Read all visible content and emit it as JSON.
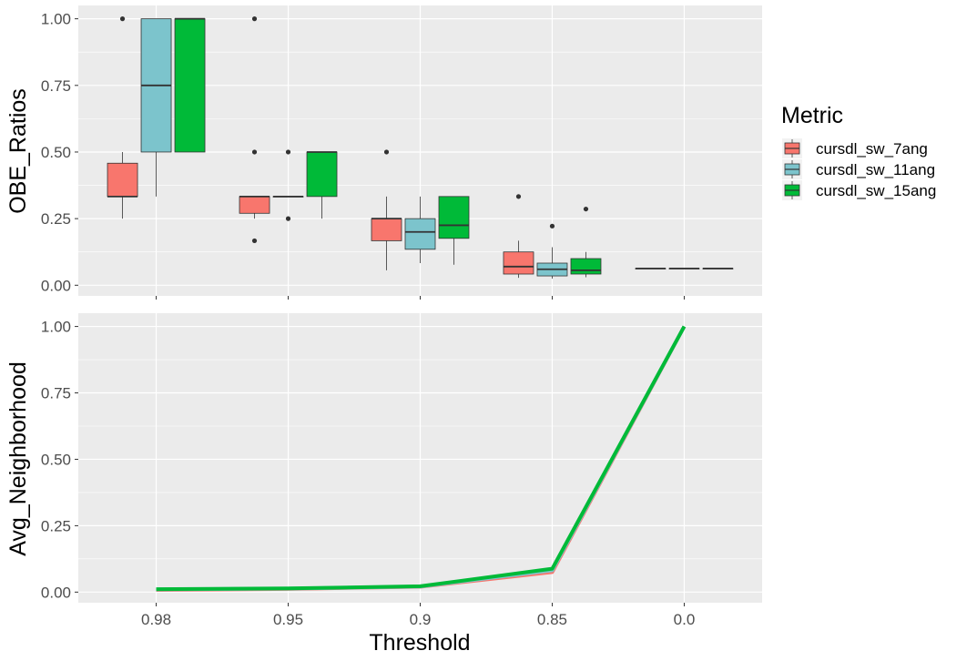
{
  "chart_data": [
    {
      "type": "box",
      "panel": "top",
      "ylabel": "OBE_Ratios",
      "xlabel": "",
      "categories": [
        "0.98",
        "0.95",
        "0.9",
        "0.85",
        "0.0"
      ],
      "ylim": [
        -0.04,
        1.05
      ],
      "yticks": [
        0.0,
        0.25,
        0.5,
        0.75,
        1.0
      ],
      "ytick_labels": [
        "0.00",
        "0.25",
        "0.50",
        "0.75",
        "1.00"
      ],
      "grid": true,
      "series": [
        {
          "name": "cursdl_sw_7ang",
          "color": "#F8766D",
          "boxes": [
            {
              "q1": 0.333,
              "median": 0.333,
              "q3": 0.458,
              "whisker_low": 0.25,
              "whisker_high": 0.5,
              "outliers": [
                1.0
              ]
            },
            {
              "q1": 0.27,
              "median": 0.333,
              "q3": 0.333,
              "whisker_low": 0.25,
              "whisker_high": 0.333,
              "outliers": [
                0.167,
                0.5,
                1.0
              ]
            },
            {
              "q1": 0.167,
              "median": 0.25,
              "q3": 0.25,
              "whisker_low": 0.056,
              "whisker_high": 0.333,
              "outliers": [
                0.5
              ]
            },
            {
              "q1": 0.042,
              "median": 0.07,
              "q3": 0.125,
              "whisker_low": 0.028,
              "whisker_high": 0.167,
              "outliers": [
                0.333
              ]
            },
            {
              "q1": 0.063,
              "median": 0.063,
              "q3": 0.063,
              "whisker_low": 0.063,
              "whisker_high": 0.063,
              "outliers": []
            }
          ]
        },
        {
          "name": "cursdl_sw_11ang",
          "color": "#7CC4CC",
          "boxes": [
            {
              "q1": 0.5,
              "median": 0.75,
              "q3": 1.0,
              "whisker_low": 0.333,
              "whisker_high": 1.0,
              "outliers": []
            },
            {
              "q1": 0.333,
              "median": 0.333,
              "q3": 0.333,
              "whisker_low": 0.333,
              "whisker_high": 0.333,
              "outliers": [
                0.25,
                0.5
              ]
            },
            {
              "q1": 0.135,
              "median": 0.2,
              "q3": 0.25,
              "whisker_low": 0.083,
              "whisker_high": 0.333,
              "outliers": []
            },
            {
              "q1": 0.035,
              "median": 0.06,
              "q3": 0.083,
              "whisker_low": 0.025,
              "whisker_high": 0.143,
              "outliers": [
                0.222
              ]
            },
            {
              "q1": 0.063,
              "median": 0.063,
              "q3": 0.063,
              "whisker_low": 0.063,
              "whisker_high": 0.063,
              "outliers": []
            }
          ]
        },
        {
          "name": "cursdl_sw_15ang",
          "color": "#00BA38",
          "boxes": [
            {
              "q1": 0.5,
              "median": 1.0,
              "q3": 1.0,
              "whisker_low": 0.5,
              "whisker_high": 1.0,
              "outliers": []
            },
            {
              "q1": 0.333,
              "median": 0.5,
              "q3": 0.5,
              "whisker_low": 0.25,
              "whisker_high": 0.5,
              "outliers": []
            },
            {
              "q1": 0.176,
              "median": 0.225,
              "q3": 0.333,
              "whisker_low": 0.077,
              "whisker_high": 0.333,
              "outliers": []
            },
            {
              "q1": 0.042,
              "median": 0.056,
              "q3": 0.1,
              "whisker_low": 0.03,
              "whisker_high": 0.125,
              "outliers": [
                0.286
              ]
            },
            {
              "q1": 0.063,
              "median": 0.063,
              "q3": 0.063,
              "whisker_low": 0.063,
              "whisker_high": 0.063,
              "outliers": []
            }
          ]
        }
      ]
    },
    {
      "type": "line",
      "panel": "bottom",
      "ylabel": "Avg_Neighborhood",
      "xlabel": "Threshold",
      "categories": [
        "0.98",
        "0.95",
        "0.9",
        "0.85",
        "0.0"
      ],
      "ylim": [
        -0.04,
        1.05
      ],
      "yticks": [
        0.0,
        0.25,
        0.5,
        0.75,
        1.0
      ],
      "ytick_labels": [
        "0.00",
        "0.25",
        "0.50",
        "0.75",
        "1.00"
      ],
      "grid": true,
      "series": [
        {
          "name": "cursdl_sw_7ang",
          "color": "#F8766D",
          "values": [
            0.008,
            0.012,
            0.02,
            0.075,
            1.0
          ]
        },
        {
          "name": "cursdl_sw_11ang",
          "color": "#7CC4CC",
          "values": [
            0.01,
            0.013,
            0.021,
            0.082,
            1.0
          ]
        },
        {
          "name": "cursdl_sw_15ang",
          "color": "#00BA38",
          "values": [
            0.011,
            0.014,
            0.022,
            0.088,
            1.0
          ]
        }
      ]
    }
  ],
  "legend": {
    "title": "Metric",
    "placement": "right",
    "items": [
      {
        "label": "cursdl_sw_7ang",
        "color": "#F8766D"
      },
      {
        "label": "cursdl_sw_11ang",
        "color": "#7CC4CC"
      },
      {
        "label": "cursdl_sw_15ang",
        "color": "#00BA38"
      }
    ]
  },
  "colors": {
    "panel_background": "#EBEBEB",
    "grid": "#FFFFFF",
    "axis_text": "#4D4D4D",
    "box_outline": "#333333"
  }
}
